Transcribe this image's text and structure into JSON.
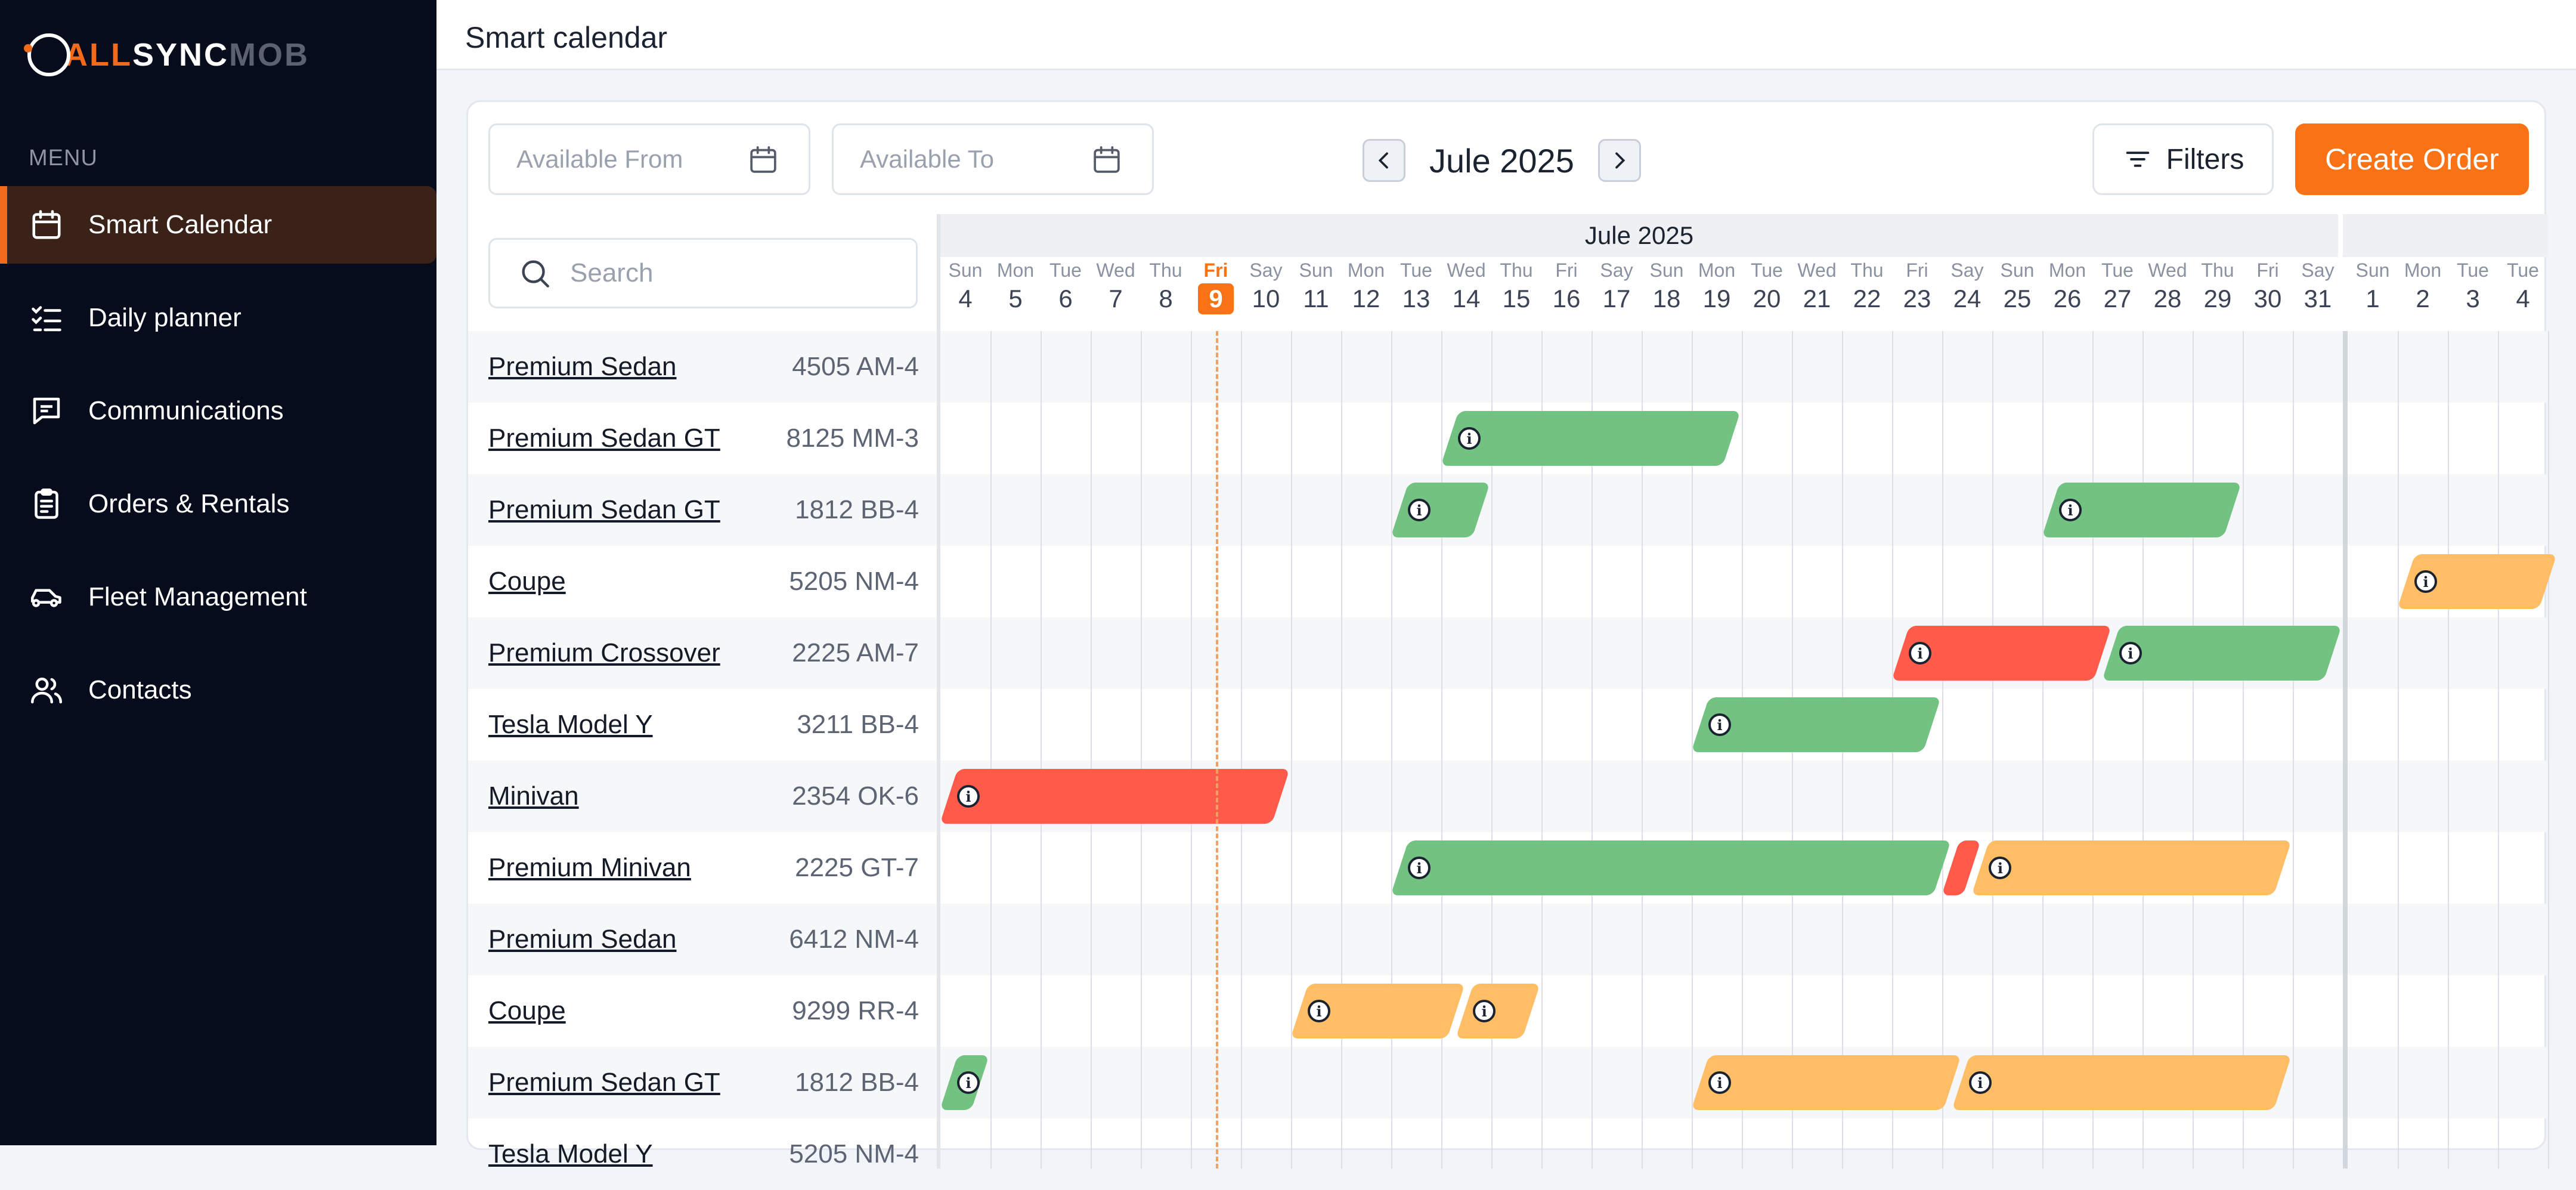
{
  "logo": {
    "part1": "ALL",
    "part2": "SYNC",
    "part3": "MOB"
  },
  "sidebar": {
    "menu_caption": "MENU",
    "items": [
      {
        "label": "Smart Calendar",
        "icon": "calendar-icon",
        "active": true
      },
      {
        "label": "Daily planner",
        "icon": "checklist-icon",
        "active": false
      },
      {
        "label": "Communications",
        "icon": "chat-icon",
        "active": false
      },
      {
        "label": "Orders & Rentals",
        "icon": "clipboard-icon",
        "active": false
      },
      {
        "label": "Fleet Management",
        "icon": "car-icon",
        "active": false
      },
      {
        "label": "Contacts",
        "icon": "users-icon",
        "active": false
      }
    ]
  },
  "header": {
    "title": "Smart calendar"
  },
  "toolbar": {
    "available_from_placeholder": "Available From",
    "available_to_placeholder": "Available To",
    "month_label": "Jule 2025",
    "filters_label": "Filters",
    "create_order_label": "Create Order"
  },
  "search": {
    "placeholder": "Search"
  },
  "timeline": {
    "month_headers": [
      "Jule 2025",
      ""
    ],
    "today": 9,
    "days": [
      {
        "dow": "Sun",
        "num": "4"
      },
      {
        "dow": "Mon",
        "num": "5"
      },
      {
        "dow": "Tue",
        "num": "6"
      },
      {
        "dow": "Wed",
        "num": "7"
      },
      {
        "dow": "Thu",
        "num": "8"
      },
      {
        "dow": "Fri",
        "num": "9"
      },
      {
        "dow": "Say",
        "num": "10"
      },
      {
        "dow": "Sun",
        "num": "11"
      },
      {
        "dow": "Mon",
        "num": "12"
      },
      {
        "dow": "Tue",
        "num": "13"
      },
      {
        "dow": "Wed",
        "num": "14"
      },
      {
        "dow": "Thu",
        "num": "15"
      },
      {
        "dow": "Fri",
        "num": "16"
      },
      {
        "dow": "Say",
        "num": "17"
      },
      {
        "dow": "Sun",
        "num": "18"
      },
      {
        "dow": "Mon",
        "num": "19"
      },
      {
        "dow": "Tue",
        "num": "20"
      },
      {
        "dow": "Wed",
        "num": "21"
      },
      {
        "dow": "Thu",
        "num": "22"
      },
      {
        "dow": "Fri",
        "num": "23"
      },
      {
        "dow": "Say",
        "num": "24"
      },
      {
        "dow": "Sun",
        "num": "25"
      },
      {
        "dow": "Mon",
        "num": "26"
      },
      {
        "dow": "Tue",
        "num": "27"
      },
      {
        "dow": "Wed",
        "num": "28"
      },
      {
        "dow": "Thu",
        "num": "29"
      },
      {
        "dow": "Fri",
        "num": "30"
      },
      {
        "dow": "Say",
        "num": "31"
      },
      {
        "dow": "Sun",
        "num": "1"
      },
      {
        "dow": "Mon",
        "num": "2"
      },
      {
        "dow": "Tue",
        "num": "3"
      },
      {
        "dow": "Tue",
        "num": "4"
      }
    ]
  },
  "vehicles": [
    {
      "name": "Premium Sedan",
      "plate": "4505 AM-4"
    },
    {
      "name": "Premium Sedan GT",
      "plate": "8125 MM-3"
    },
    {
      "name": "Premium Sedan GT",
      "plate": "1812 BB-4"
    },
    {
      "name": "Coupe",
      "plate": "5205 NM-4"
    },
    {
      "name": "Premium Crossover",
      "plate": "2225 AM-7"
    },
    {
      "name": "Tesla Model Y",
      "plate": "3211 BB-4"
    },
    {
      "name": "Minivan",
      "plate": "2354 OK-6"
    },
    {
      "name": "Premium Minivan",
      "plate": "2225 GT-7"
    },
    {
      "name": "Premium Sedan",
      "plate": "6412 NM-4"
    },
    {
      "name": "Coupe",
      "plate": "9299 RR-4"
    },
    {
      "name": "Premium Sedan GT",
      "plate": "1812 BB-4"
    },
    {
      "name": "Tesla Model Y",
      "plate": "5205 NM-4"
    }
  ],
  "bookings": [
    {
      "row": 1,
      "start": 10,
      "end": 15.8,
      "status": "green"
    },
    {
      "row": 2,
      "start": 9,
      "end": 10.8,
      "status": "green"
    },
    {
      "row": 2,
      "start": 22,
      "end": 25.8,
      "status": "green"
    },
    {
      "row": 3,
      "start": 29,
      "end": 32,
      "status": "orange"
    },
    {
      "row": 4,
      "start": 19,
      "end": 23.2,
      "status": "red"
    },
    {
      "row": 4,
      "start": 23.2,
      "end": 27.8,
      "status": "green"
    },
    {
      "row": 5,
      "start": 15,
      "end": 19.8,
      "status": "green"
    },
    {
      "row": 6,
      "start": 0,
      "end": 6.8,
      "status": "red"
    },
    {
      "row": 7,
      "start": 9,
      "end": 20,
      "status": "green"
    },
    {
      "row": 7,
      "start": 20,
      "end": 20.6,
      "status": "red"
    },
    {
      "row": 7,
      "start": 20.6,
      "end": 26.8,
      "status": "orange"
    },
    {
      "row": 9,
      "start": 7,
      "end": 10.3,
      "status": "orange"
    },
    {
      "row": 9,
      "start": 10.3,
      "end": 11.8,
      "status": "orange"
    },
    {
      "row": 10,
      "start": 0,
      "end": 0.8,
      "status": "green"
    },
    {
      "row": 10,
      "start": 15,
      "end": 20.2,
      "status": "orange"
    },
    {
      "row": 10,
      "start": 20.2,
      "end": 26.8,
      "status": "orange"
    }
  ]
}
